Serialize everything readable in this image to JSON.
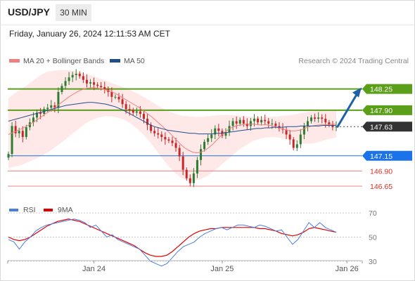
{
  "header": {
    "symbol": "USD/JPY",
    "timeframe": "30 MIN",
    "datetime": "Friday, January 26, 2024 12:11:53 AM CET"
  },
  "legend": {
    "ma20_label": "MA 20 + Bollinger Bands",
    "ma50_label": "MA 50",
    "credit": "Research © 2024 Trading Central",
    "rsi_label": "RSI",
    "rsi_ma_label": "9MA"
  },
  "colors": {
    "ma20": "#f08080",
    "ma50": "#1f4e8c",
    "bollinger_fill": "#fde0e0",
    "resistance": "#5a9e1a",
    "pivot": "#1a73e8",
    "support": "#f08080",
    "support_text": "#d93025",
    "current": "#333333",
    "arrow": "#1f5fa8",
    "rsi": "#4a7fe0",
    "rsi_ma": "#e00000",
    "candle_up": "#2e7d32",
    "candle_down": "#c62828"
  },
  "chart_data": {
    "type": "candlestick",
    "y_range": [
      146.5,
      148.5
    ],
    "levels": [
      {
        "label": "148.25",
        "value": 148.25,
        "kind": "resistance"
      },
      {
        "label": "147.90",
        "value": 147.9,
        "kind": "resistance"
      },
      {
        "label": "147.63",
        "value": 147.63,
        "kind": "current"
      },
      {
        "label": "147.15",
        "value": 147.15,
        "kind": "pivot"
      },
      {
        "label": "146.90",
        "value": 146.9,
        "kind": "support"
      },
      {
        "label": "146.65",
        "value": 146.65,
        "kind": "support"
      }
    ],
    "x_labels": [
      "Jan 24",
      "Jan 25",
      "Jan 26"
    ],
    "x_label_index": [
      24,
      60,
      95
    ],
    "closes": [
      147.18,
      147.64,
      147.52,
      147.56,
      147.46,
      147.62,
      147.7,
      147.78,
      147.86,
      147.84,
      147.92,
      147.94,
      147.98,
      147.94,
      148.2,
      148.3,
      148.38,
      148.44,
      148.48,
      148.5,
      148.46,
      148.4,
      148.34,
      148.36,
      148.32,
      148.3,
      148.28,
      148.24,
      148.2,
      148.12,
      148.12,
      148.08,
      148.0,
      147.92,
      147.9,
      147.86,
      147.88,
      147.84,
      147.76,
      147.66,
      147.56,
      147.52,
      147.5,
      147.46,
      147.42,
      147.4,
      147.36,
      147.28,
      147.14,
      146.92,
      146.78,
      146.7,
      146.86,
      147.08,
      147.26,
      147.38,
      147.44,
      147.5,
      147.6,
      147.56,
      147.48,
      147.54,
      147.64,
      147.72,
      147.68,
      147.74,
      147.68,
      147.64,
      147.72,
      147.76,
      147.7,
      147.74,
      147.72,
      147.68,
      147.68,
      147.64,
      147.6,
      147.58,
      147.5,
      147.42,
      147.28,
      147.34,
      147.5,
      147.64,
      147.72,
      147.78,
      147.76,
      147.78,
      147.76,
      147.7,
      147.66,
      147.62,
      147.63
    ],
    "ma20": [
      147.5,
      147.53,
      147.56,
      147.59,
      147.62,
      147.66,
      147.7,
      147.74,
      147.79,
      147.84,
      147.88,
      147.93,
      147.98,
      148.03,
      148.08,
      148.13,
      148.17,
      148.21,
      148.24,
      148.26,
      148.27,
      148.27,
      148.26,
      148.25,
      148.23,
      148.21,
      148.18,
      148.14,
      148.1,
      148.06,
      148.02,
      147.98,
      147.94,
      147.89,
      147.84,
      147.79,
      147.73,
      147.67,
      147.61,
      147.55,
      147.48,
      147.41,
      147.34,
      147.28,
      147.24,
      147.21,
      147.2,
      147.21,
      147.24,
      147.29,
      147.35,
      147.42,
      147.49,
      147.55,
      147.6,
      147.63,
      147.65,
      147.66,
      147.67,
      147.67,
      147.67,
      147.66,
      147.66,
      147.66,
      147.65,
      147.63,
      147.61,
      147.59,
      147.57,
      147.56,
      147.56,
      147.57,
      147.59,
      147.62,
      147.64,
      147.65,
      147.66,
      147.66,
      147.66,
      147.67,
      147.67
    ],
    "ma50": [
      147.72,
      147.74,
      147.76,
      147.78,
      147.8,
      147.82,
      147.84,
      147.86,
      147.88,
      147.9,
      147.92,
      147.94,
      147.96,
      147.98,
      147.99,
      148.0,
      148.01,
      148.02,
      148.03,
      148.03,
      148.02,
      148.01,
      148.0,
      147.98,
      147.96,
      147.93,
      147.9,
      147.86,
      147.82,
      147.78,
      147.74,
      147.7,
      147.66,
      147.63,
      147.61,
      147.59,
      147.57,
      147.56,
      147.55,
      147.54,
      147.53,
      147.52,
      147.52,
      147.51,
      147.51,
      147.51,
      147.51,
      147.52,
      147.52,
      147.53,
      147.54,
      147.55,
      147.56,
      147.57,
      147.58,
      147.59,
      147.6,
      147.6,
      147.61,
      147.61,
      147.62,
      147.62,
      147.62,
      147.63,
      147.63,
      147.63,
      147.64,
      147.64,
      147.64,
      147.64,
      147.64,
      147.65,
      147.65,
      147.65,
      147.65
    ],
    "bb_upper": [
      148.1,
      148.18,
      148.25,
      148.32,
      148.4,
      148.48,
      148.53,
      148.55,
      148.56,
      148.56,
      148.55,
      148.53,
      148.5,
      148.47,
      148.43,
      148.39,
      148.35,
      148.31,
      148.27,
      148.23,
      148.18,
      148.12,
      148.06,
      147.99,
      147.93,
      147.88,
      147.84,
      147.81,
      147.8,
      147.79,
      147.79,
      147.8,
      147.81,
      147.82,
      147.82,
      147.82,
      147.81,
      147.8,
      147.79,
      147.79,
      147.79,
      147.79,
      147.8,
      147.81,
      147.82,
      147.84,
      147.86,
      147.88,
      147.89,
      147.9,
      147.9,
      147.9
    ],
    "bb_lower": [
      146.95,
      146.97,
      147.0,
      147.04,
      147.09,
      147.14,
      147.2,
      147.27,
      147.35,
      147.43,
      147.52,
      147.6,
      147.68,
      147.74,
      147.78,
      147.8,
      147.8,
      147.78,
      147.74,
      147.68,
      147.6,
      147.5,
      147.38,
      147.24,
      147.1,
      146.97,
      146.86,
      146.78,
      146.74,
      146.74,
      146.77,
      146.82,
      146.9,
      146.99,
      147.08,
      147.17,
      147.26,
      147.33,
      147.39,
      147.43,
      147.45,
      147.46,
      147.45,
      147.43,
      147.4,
      147.37,
      147.35,
      147.35,
      147.37,
      147.4,
      147.43,
      147.45
    ],
    "rsi": {
      "y_range": [
        20,
        80
      ],
      "ticks": [
        70,
        50,
        30
      ],
      "rsi_values": [
        48,
        46,
        40,
        46,
        50,
        55,
        58,
        60,
        61,
        62,
        63,
        64,
        65,
        64,
        62,
        58,
        60,
        55,
        50,
        52,
        48,
        46,
        44,
        42,
        40,
        35,
        30,
        28,
        26,
        28,
        33,
        38,
        42,
        44,
        46,
        50,
        53,
        55,
        57,
        58,
        56,
        58,
        60,
        60,
        59,
        58,
        60,
        59,
        57,
        55,
        56,
        50,
        44,
        48,
        55,
        62,
        58,
        62,
        58,
        56,
        54
      ],
      "ma_values": [
        50,
        48,
        47,
        48,
        50,
        53,
        56,
        59,
        61,
        63,
        64,
        65,
        64,
        63,
        61,
        59,
        57,
        55,
        53,
        51,
        49,
        47,
        45,
        43,
        40,
        37,
        35,
        34,
        34,
        35,
        38,
        42,
        46,
        50,
        53,
        55,
        56,
        57,
        57,
        58,
        58,
        58,
        58,
        58,
        58,
        58,
        57,
        57,
        56,
        55,
        53,
        52,
        51,
        52,
        54,
        57,
        58,
        57,
        56,
        55,
        54
      ]
    }
  }
}
